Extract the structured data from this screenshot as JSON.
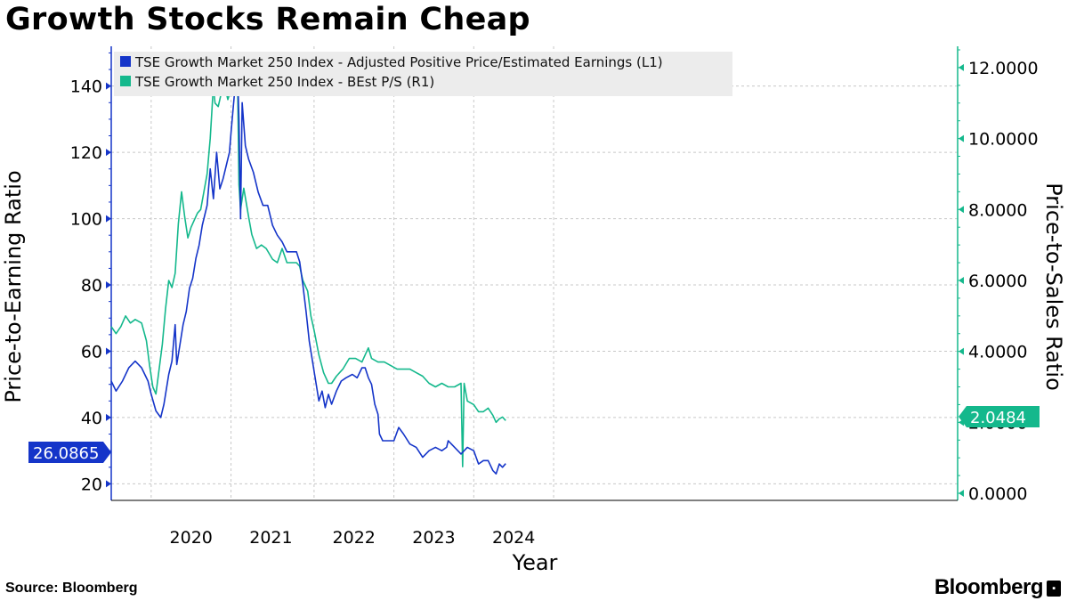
{
  "title": "Growth Stocks Remain Cheap",
  "source": "Source: Bloomberg",
  "brand": "Bloomberg",
  "colors": {
    "series1": "#1535c9",
    "series2": "#14b88c",
    "grid": "#c8c8c8",
    "legend_bg": "#ececec"
  },
  "chart_data": {
    "type": "line",
    "title": "Growth Stocks Remain Cheap",
    "xlabel": "Year",
    "ylabel_left": "Price-to-Earning Ratio",
    "ylabel_right": "Price-to-Sales Ratio",
    "x_range": [
      2019.25,
      2024.55
    ],
    "ylim_left": [
      15,
      152
    ],
    "ylim_right": [
      -0.2,
      12.6
    ],
    "left_ticks": [
      20,
      40,
      60,
      80,
      100,
      120,
      140
    ],
    "right_ticks": [
      0,
      2,
      4,
      6,
      8,
      10,
      12
    ],
    "right_tick_labels": [
      "0.0000",
      "2.0000",
      "4.0000",
      "6.0000",
      "8.0000",
      "10.0000",
      "12.0000"
    ],
    "x_ticks": [
      {
        "label": "2020",
        "at": 2019.75
      },
      {
        "label": "2021",
        "at": 2020.25
      },
      {
        "label": "2022",
        "at": 2020.77
      },
      {
        "label": "2023",
        "at": 2021.27
      },
      {
        "label": "2024",
        "at": 2021.77
      }
    ],
    "year_gridlines": [
      2019.5,
      2020.0,
      2020.52,
      2021.02,
      2021.52,
      2022.02
    ],
    "legend_position": "top-left",
    "series": [
      {
        "name": "TSE Growth Market 250 Index - Adjusted Positive Price/Estimated Earnings (L1)",
        "axis": "left",
        "last_value": "26.0865",
        "points": [
          [
            2019.25,
            51
          ],
          [
            2019.28,
            48
          ],
          [
            2019.32,
            51
          ],
          [
            2019.36,
            55
          ],
          [
            2019.4,
            57
          ],
          [
            2019.44,
            55
          ],
          [
            2019.48,
            51
          ],
          [
            2019.5,
            47
          ],
          [
            2019.53,
            42
          ],
          [
            2019.56,
            40
          ],
          [
            2019.58,
            44
          ],
          [
            2019.61,
            53
          ],
          [
            2019.63,
            57
          ],
          [
            2019.65,
            68
          ],
          [
            2019.66,
            56
          ],
          [
            2019.68,
            62
          ],
          [
            2019.7,
            68
          ],
          [
            2019.72,
            72
          ],
          [
            2019.74,
            79
          ],
          [
            2019.76,
            82
          ],
          [
            2019.78,
            88
          ],
          [
            2019.8,
            92
          ],
          [
            2019.82,
            98
          ],
          [
            2019.85,
            104
          ],
          [
            2019.87,
            115
          ],
          [
            2019.89,
            106
          ],
          [
            2019.91,
            120
          ],
          [
            2019.93,
            109
          ],
          [
            2019.95,
            112
          ],
          [
            2019.97,
            116
          ],
          [
            2019.99,
            120
          ],
          [
            2020.0,
            126
          ],
          [
            2020.02,
            137
          ],
          [
            2020.04,
            145
          ],
          [
            2020.05,
            130
          ],
          [
            2020.06,
            100
          ],
          [
            2020.07,
            135
          ],
          [
            2020.09,
            122
          ],
          [
            2020.11,
            118
          ],
          [
            2020.14,
            114
          ],
          [
            2020.17,
            108
          ],
          [
            2020.2,
            104
          ],
          [
            2020.23,
            104
          ],
          [
            2020.26,
            98
          ],
          [
            2020.29,
            95
          ],
          [
            2020.32,
            93
          ],
          [
            2020.35,
            90
          ],
          [
            2020.38,
            90
          ],
          [
            2020.41,
            90
          ],
          [
            2020.43,
            87
          ],
          [
            2020.45,
            80
          ],
          [
            2020.47,
            72
          ],
          [
            2020.49,
            63
          ],
          [
            2020.51,
            57
          ],
          [
            2020.53,
            51
          ],
          [
            2020.55,
            45
          ],
          [
            2020.57,
            48
          ],
          [
            2020.59,
            43
          ],
          [
            2020.61,
            47
          ],
          [
            2020.63,
            44
          ],
          [
            2020.66,
            48
          ],
          [
            2020.69,
            51
          ],
          [
            2020.72,
            52
          ],
          [
            2020.76,
            53
          ],
          [
            2020.79,
            52
          ],
          [
            2020.82,
            55
          ],
          [
            2020.84,
            55
          ],
          [
            2020.86,
            52
          ],
          [
            2020.88,
            50
          ],
          [
            2020.9,
            44
          ],
          [
            2020.92,
            41
          ],
          [
            2020.93,
            35
          ],
          [
            2020.95,
            33
          ],
          [
            2020.98,
            33
          ],
          [
            2021.02,
            33
          ],
          [
            2021.05,
            37
          ],
          [
            2021.08,
            35
          ],
          [
            2021.12,
            32
          ],
          [
            2021.16,
            31
          ],
          [
            2021.2,
            28
          ],
          [
            2021.24,
            30
          ],
          [
            2021.28,
            31
          ],
          [
            2021.32,
            30
          ],
          [
            2021.35,
            31
          ],
          [
            2021.36,
            33
          ],
          [
            2021.4,
            31
          ],
          [
            2021.44,
            29
          ],
          [
            2021.48,
            31
          ],
          [
            2021.52,
            30
          ],
          [
            2021.55,
            26
          ],
          [
            2021.58,
            27
          ],
          [
            2021.61,
            27
          ],
          [
            2021.64,
            24
          ],
          [
            2021.66,
            23
          ],
          [
            2021.68,
            26
          ],
          [
            2021.7,
            25
          ],
          [
            2021.72,
            26.0865
          ]
        ]
      },
      {
        "name": "TSE Growth Market 250 Index - BEst P/S (R1)",
        "axis": "right",
        "last_value": "2.0484",
        "points": [
          [
            2019.25,
            4.7
          ],
          [
            2019.28,
            4.5
          ],
          [
            2019.31,
            4.7
          ],
          [
            2019.34,
            5.0
          ],
          [
            2019.37,
            4.8
          ],
          [
            2019.4,
            4.9
          ],
          [
            2019.44,
            4.8
          ],
          [
            2019.47,
            4.3
          ],
          [
            2019.49,
            3.6
          ],
          [
            2019.51,
            3.0
          ],
          [
            2019.53,
            2.8
          ],
          [
            2019.55,
            3.5
          ],
          [
            2019.57,
            4.2
          ],
          [
            2019.59,
            5.2
          ],
          [
            2019.61,
            6.0
          ],
          [
            2019.63,
            5.8
          ],
          [
            2019.65,
            6.2
          ],
          [
            2019.67,
            7.6
          ],
          [
            2019.69,
            8.5
          ],
          [
            2019.71,
            7.8
          ],
          [
            2019.73,
            7.2
          ],
          [
            2019.75,
            7.5
          ],
          [
            2019.77,
            7.7
          ],
          [
            2019.79,
            7.9
          ],
          [
            2019.81,
            8.0
          ],
          [
            2019.83,
            8.5
          ],
          [
            2019.85,
            9.0
          ],
          [
            2019.87,
            10.0
          ],
          [
            2019.89,
            11.5
          ],
          [
            2019.9,
            11.0
          ],
          [
            2019.92,
            10.9
          ],
          [
            2019.94,
            11.3
          ],
          [
            2019.96,
            11.5
          ],
          [
            2019.98,
            11.1
          ],
          [
            2020.0,
            11.4
          ],
          [
            2020.02,
            11.4
          ],
          [
            2020.04,
            11.9
          ],
          [
            2020.05,
            8.7
          ],
          [
            2020.06,
            8.0
          ],
          [
            2020.08,
            8.6
          ],
          [
            2020.11,
            7.8
          ],
          [
            2020.13,
            7.3
          ],
          [
            2020.16,
            6.9
          ],
          [
            2020.19,
            7.0
          ],
          [
            2020.22,
            6.9
          ],
          [
            2020.26,
            6.6
          ],
          [
            2020.29,
            6.5
          ],
          [
            2020.32,
            6.9
          ],
          [
            2020.35,
            6.5
          ],
          [
            2020.38,
            6.5
          ],
          [
            2020.41,
            6.5
          ],
          [
            2020.43,
            6.4
          ],
          [
            2020.45,
            6.0
          ],
          [
            2020.48,
            5.7
          ],
          [
            2020.5,
            5.0
          ],
          [
            2020.52,
            4.6
          ],
          [
            2020.55,
            3.9
          ],
          [
            2020.58,
            3.4
          ],
          [
            2020.61,
            3.1
          ],
          [
            2020.63,
            3.1
          ],
          [
            2020.66,
            3.3
          ],
          [
            2020.7,
            3.5
          ],
          [
            2020.74,
            3.8
          ],
          [
            2020.78,
            3.8
          ],
          [
            2020.82,
            3.7
          ],
          [
            2020.84,
            3.9
          ],
          [
            2020.86,
            4.1
          ],
          [
            2020.88,
            3.8
          ],
          [
            2020.92,
            3.7
          ],
          [
            2020.96,
            3.7
          ],
          [
            2021.0,
            3.6
          ],
          [
            2021.04,
            3.5
          ],
          [
            2021.08,
            3.5
          ],
          [
            2021.12,
            3.5
          ],
          [
            2021.16,
            3.4
          ],
          [
            2021.2,
            3.3
          ],
          [
            2021.24,
            3.1
          ],
          [
            2021.28,
            3.0
          ],
          [
            2021.32,
            3.1
          ],
          [
            2021.36,
            3.0
          ],
          [
            2021.4,
            3.0
          ],
          [
            2021.44,
            3.1
          ],
          [
            2021.45,
            0.75
          ],
          [
            2021.46,
            3.1
          ],
          [
            2021.48,
            2.6
          ],
          [
            2021.52,
            2.5
          ],
          [
            2021.55,
            2.3
          ],
          [
            2021.58,
            2.3
          ],
          [
            2021.61,
            2.4
          ],
          [
            2021.64,
            2.2
          ],
          [
            2021.66,
            2.0
          ],
          [
            2021.68,
            2.1
          ],
          [
            2021.7,
            2.15
          ],
          [
            2021.72,
            2.0484
          ]
        ]
      }
    ]
  }
}
